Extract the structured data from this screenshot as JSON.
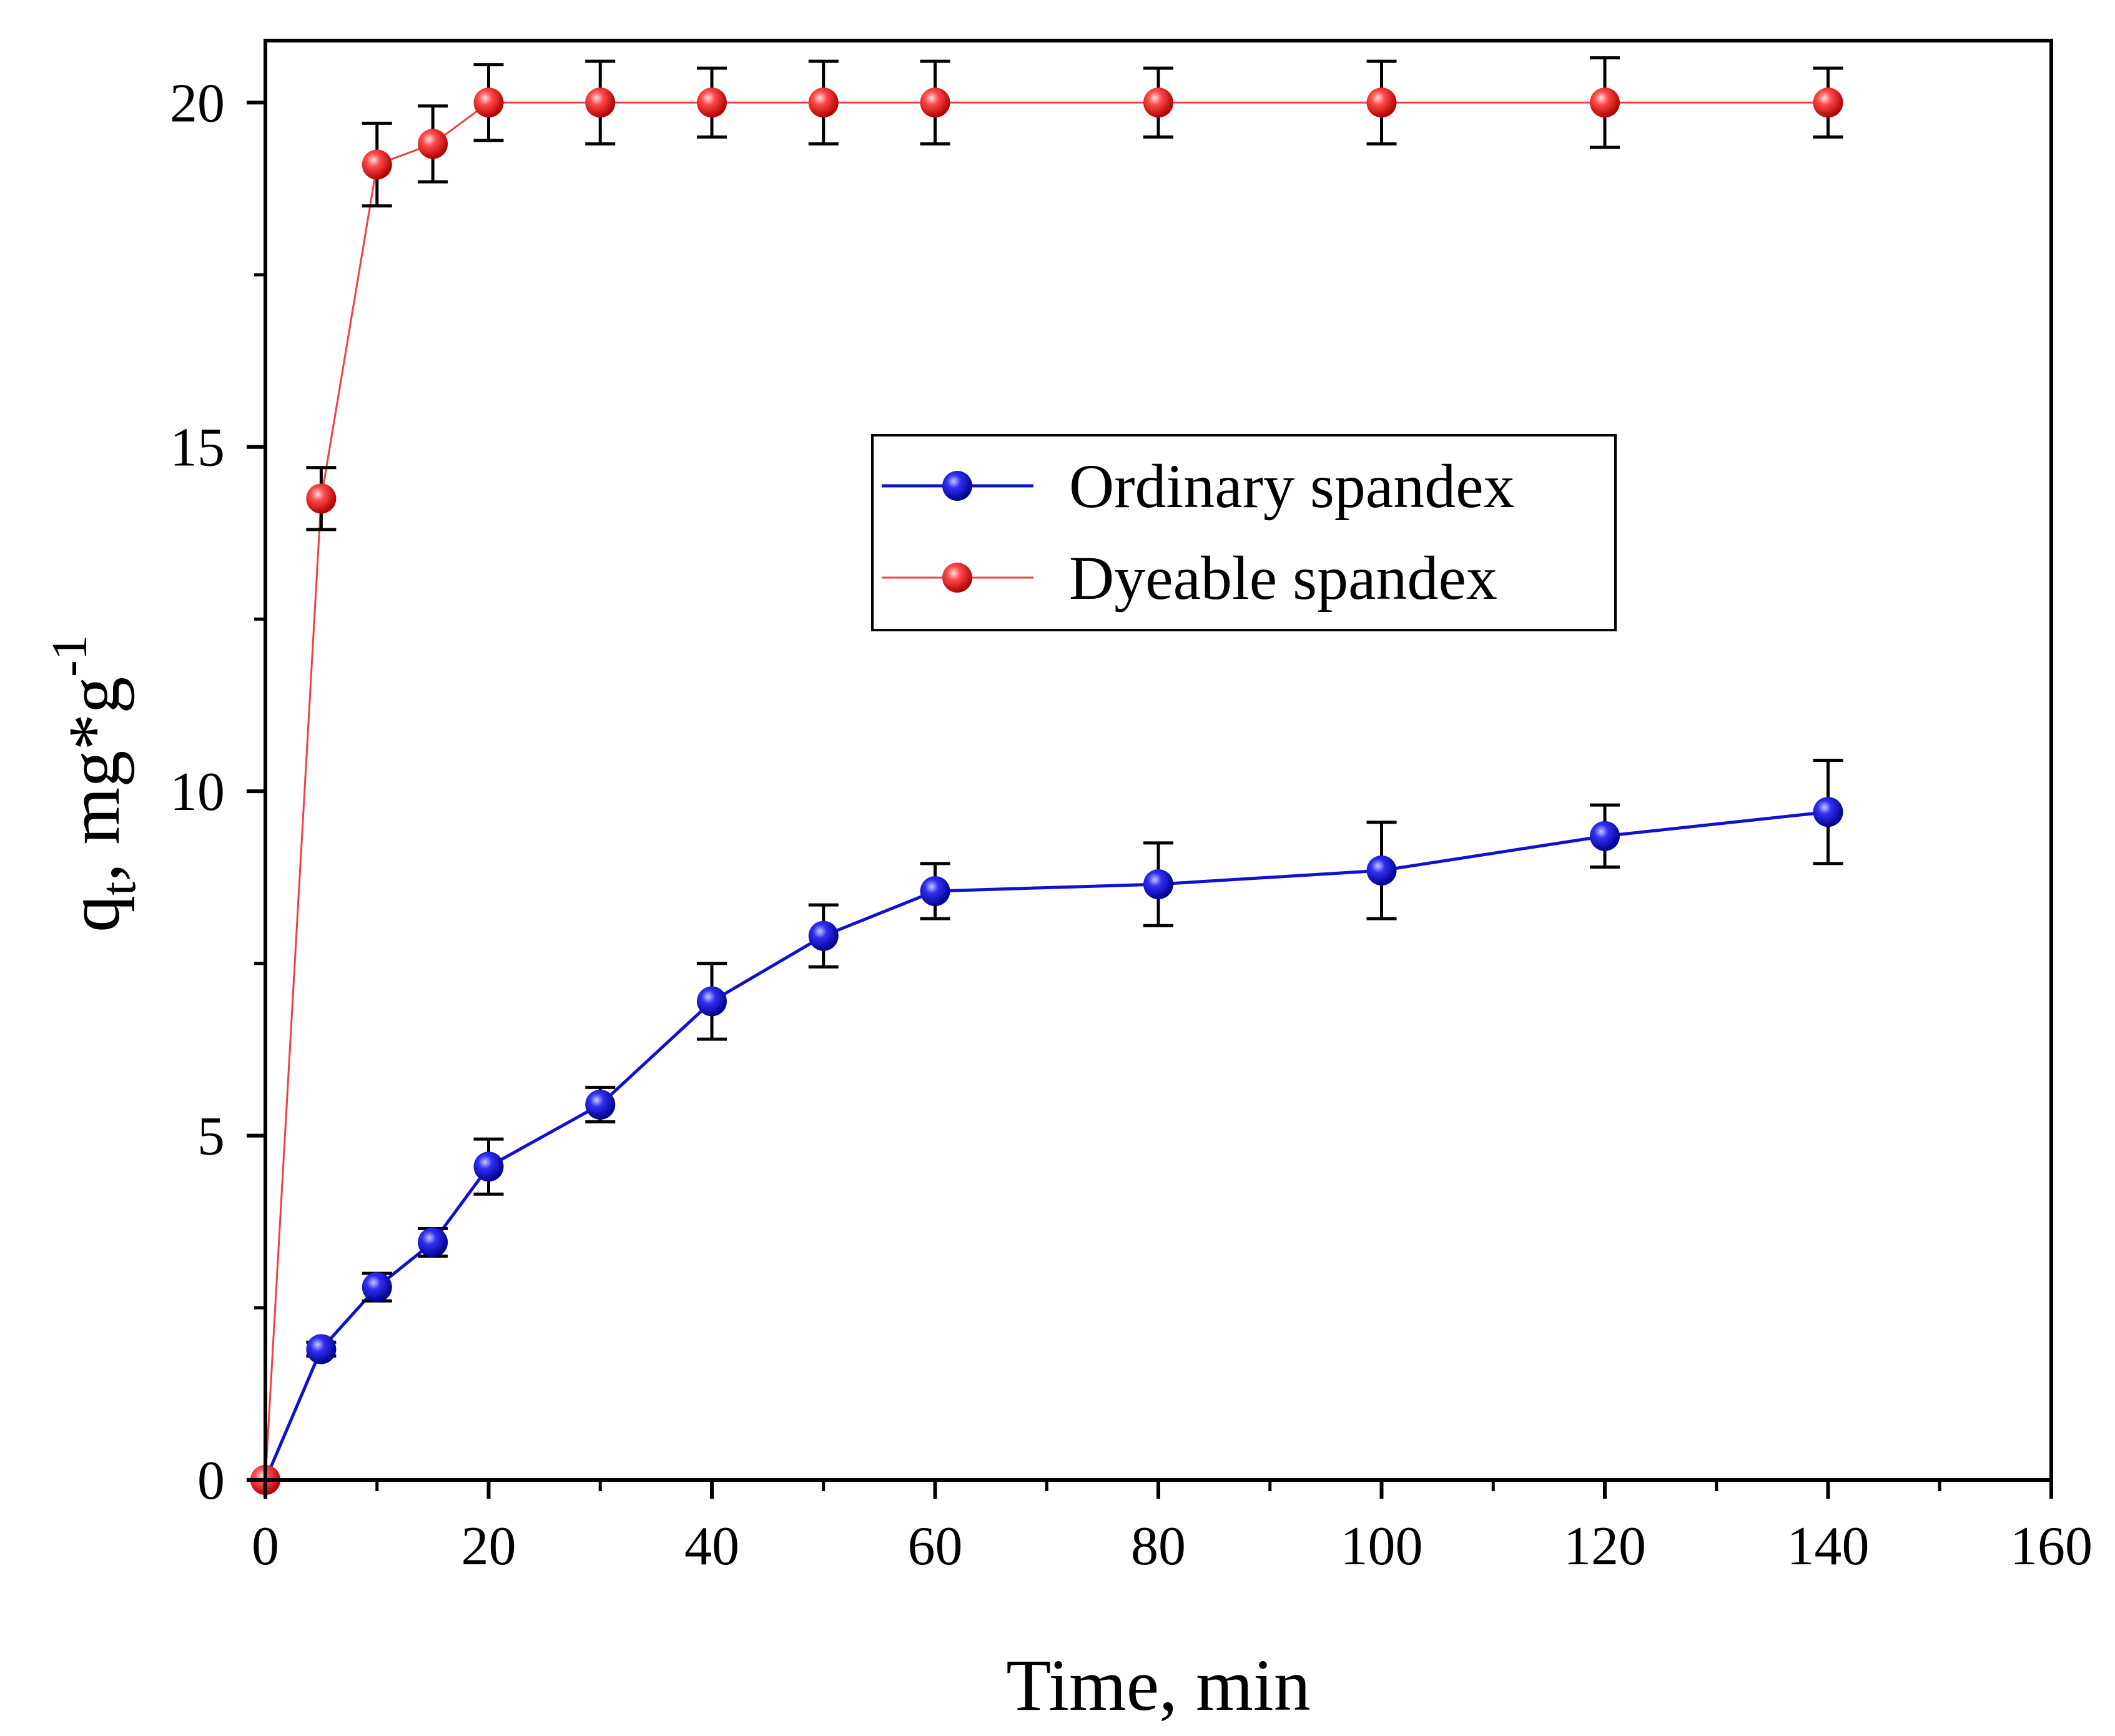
{
  "chart_data": {
    "type": "line",
    "title": "",
    "xlabel": "Time, min",
    "ylabel": {
      "base": "q",
      "subscript": "t",
      "rest": ", mg*g",
      "superscript": "-1"
    },
    "xlim": [
      0,
      160
    ],
    "ylim": [
      0,
      20.9
    ],
    "x_major_ticks": [
      0,
      20,
      40,
      60,
      80,
      100,
      120,
      140,
      160
    ],
    "x_tick_labels": [
      "0",
      "20",
      "40",
      "60",
      "80",
      "100",
      "120",
      "140",
      "160"
    ],
    "y_major_ticks": [
      0,
      5,
      10,
      15,
      20
    ],
    "y_tick_labels": [
      "0",
      "5",
      "10",
      "15",
      "20"
    ],
    "grid": false,
    "legend_position": "center-right",
    "series": [
      {
        "name": "Ordinary spandex",
        "color": "#1010d0",
        "marker_color": "#1818e0",
        "x": [
          0,
          5,
          10,
          15,
          20,
          30,
          40,
          50,
          60,
          80,
          100,
          120,
          140
        ],
        "y": [
          0,
          1.9,
          2.8,
          3.45,
          4.55,
          5.45,
          6.95,
          7.9,
          8.55,
          8.65,
          8.85,
          9.35,
          9.7
        ],
        "err": [
          0,
          0.1,
          0.2,
          0.2,
          0.4,
          0.25,
          0.55,
          0.45,
          0.4,
          0.6,
          0.7,
          0.45,
          0.75
        ]
      },
      {
        "name": "Dyeable spandex",
        "color": "#f04040",
        "marker_color": "#f03030",
        "x": [
          0,
          5,
          10,
          15,
          20,
          30,
          40,
          50,
          60,
          80,
          100,
          120,
          140
        ],
        "y": [
          0,
          14.25,
          19.1,
          19.4,
          20.0,
          20.0,
          20.0,
          20.0,
          20.0,
          20.0,
          20.0,
          20.0,
          20.0
        ],
        "err": [
          0,
          0.45,
          0.6,
          0.55,
          0.55,
          0.6,
          0.5,
          0.6,
          0.6,
          0.5,
          0.6,
          0.65,
          0.5
        ]
      }
    ]
  }
}
